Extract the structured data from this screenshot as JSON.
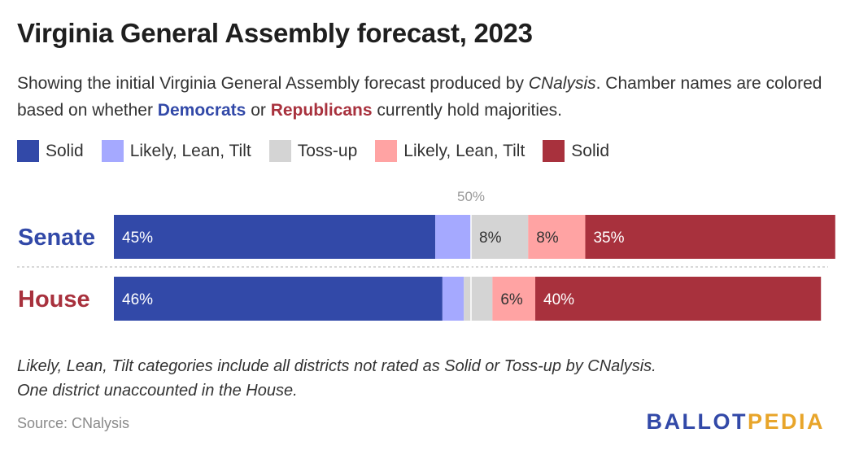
{
  "title": "Virginia General Assembly forecast, 2023",
  "subtitle": {
    "before_italic": "Showing the initial Virginia General Assembly forecast produced by ",
    "italic": "CNalysis",
    "after_italic": ". Chamber names are colored based on whether ",
    "democrats": "Democrats",
    "middle": " or ",
    "republicans": "Republicans",
    "end": " currently hold majorities."
  },
  "colors": {
    "dem_solid": "#3249a8",
    "dem_lean": "#a5a9ff",
    "tossup": "#d4d4d4",
    "rep_lean": "#ffa3a3",
    "rep_solid": "#a8313d"
  },
  "note": {
    "line1": "Likely, Lean, Tilt categories include all districts not rated as Solid or Toss-up by CNalysis.",
    "line2": "One district unaccounted in the House."
  },
  "source": "Source: CNalysis",
  "logo": {
    "ballot": "BALLOT",
    "pedia": "PEDIA"
  },
  "chart_data": {
    "type": "bar",
    "orientation": "horizontal",
    "stacked": true,
    "xlim": [
      0,
      100
    ],
    "midline_label": "50%",
    "categories": [
      "Senate",
      "House"
    ],
    "category_colors": [
      "#3249a8",
      "#a8313d"
    ],
    "series": [
      {
        "name": "Solid",
        "color": "#3249a8",
        "values": [
          45,
          46
        ],
        "labels": [
          "45%",
          "46%"
        ]
      },
      {
        "name": "Likely, Lean, Tilt",
        "color": "#a5a9ff",
        "values": [
          5,
          3
        ],
        "labels": [
          "",
          ""
        ]
      },
      {
        "name": "Toss-up",
        "color": "#d4d4d4",
        "values": [
          8,
          4
        ],
        "labels": [
          "8%",
          ""
        ]
      },
      {
        "name": "Likely, Lean, Tilt",
        "color": "#ffa3a3",
        "values": [
          8,
          6
        ],
        "labels": [
          "8%",
          "6%"
        ]
      },
      {
        "name": "Solid",
        "color": "#a8313d",
        "values": [
          35,
          40
        ],
        "labels": [
          "35%",
          "40%"
        ]
      }
    ]
  }
}
